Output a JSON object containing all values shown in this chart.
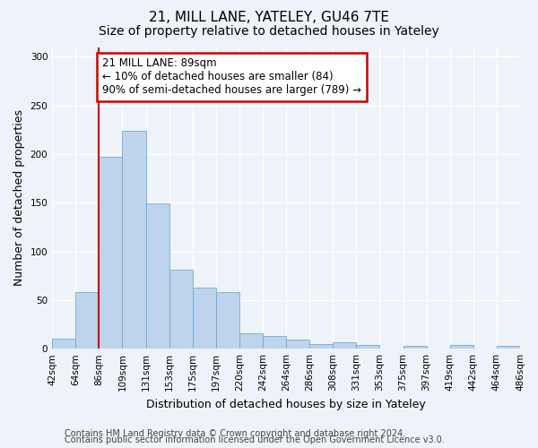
{
  "title1": "21, MILL LANE, YATELEY, GU46 7TE",
  "title2": "Size of property relative to detached houses in Yateley",
  "xlabel": "Distribution of detached houses by size in Yateley",
  "ylabel": "Number of detached properties",
  "bar_values": [
    10,
    58,
    197,
    224,
    149,
    81,
    63,
    58,
    16,
    13,
    9,
    5,
    7,
    4,
    0,
    3,
    0,
    4,
    0,
    3
  ],
  "bin_labels": [
    "42sqm",
    "64sqm",
    "86sqm",
    "109sqm",
    "131sqm",
    "153sqm",
    "175sqm",
    "197sqm",
    "220sqm",
    "242sqm",
    "264sqm",
    "286sqm",
    "308sqm",
    "331sqm",
    "353sqm",
    "375sqm",
    "397sqm",
    "419sqm",
    "442sqm",
    "464sqm",
    "486sqm"
  ],
  "bar_color": "#bed3ec",
  "bar_edge_color": "#6baed6",
  "annotation_text": "21 MILL LANE: 89sqm\n← 10% of detached houses are smaller (84)\n90% of semi-detached houses are larger (789) →",
  "annotation_box_color": "#ffffff",
  "annotation_box_edge": "#cc0000",
  "vline_color": "#cc0000",
  "vline_x_index": 2,
  "ylim": [
    0,
    310
  ],
  "footer1": "Contains HM Land Registry data © Crown copyright and database right 2024.",
  "footer2": "Contains public sector information licensed under the Open Government Licence v3.0.",
  "bg_color": "#eef2f9",
  "grid_color": "#ffffff",
  "title_fontsize": 11,
  "subtitle_fontsize": 10,
  "label_fontsize": 9,
  "tick_fontsize": 7.5,
  "footer_fontsize": 7,
  "annot_fontsize": 8.5
}
